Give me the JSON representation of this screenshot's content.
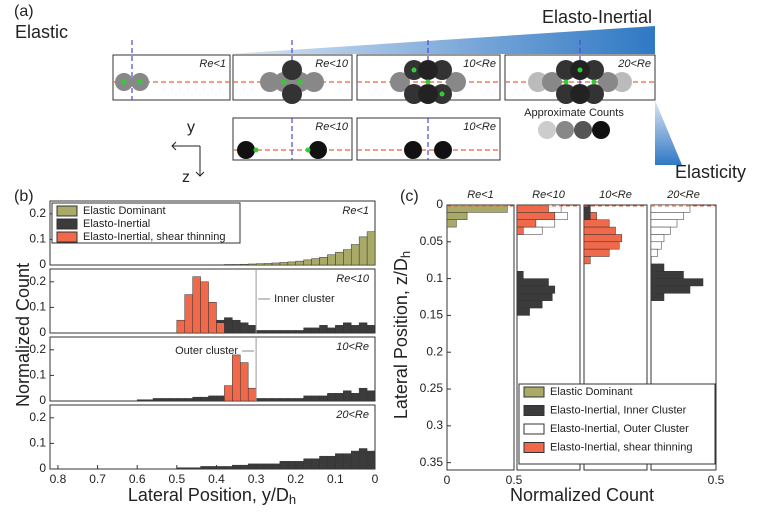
{
  "figure": {
    "panel_labels": [
      "(a)",
      "(b)",
      "(c)"
    ],
    "b_legend": [
      {
        "name": "Elastic Dominant",
        "color": "#a9a968"
      },
      {
        "name": "Elasto-Inertial",
        "color": "#3b3b3b"
      },
      {
        "name": "Elasto-Inertial, shear thinning",
        "color": "#f0694a"
      }
    ],
    "c_legend": [
      {
        "name": "Elastic Dominant",
        "color": "#a9a968"
      },
      {
        "name": "Elasto-Inertial, Inner Cluster",
        "color": "#3b3b3b"
      },
      {
        "name": "Elasto-Inertial, Outer Cluster",
        "color": "#ffffff"
      },
      {
        "name": "Elasto-Inertial, shear thinning",
        "color": "#f0694a"
      }
    ],
    "b_ylabel": "Normalized Count",
    "b_xlabel": "Lateral Position, y/D",
    "b_xlabel_sub": "h",
    "c_ylabel": "Lateral Position, z/D",
    "c_ylabel_sub": "h",
    "c_xlabel": "Normalized Count"
  },
  "diagram": {
    "left_label": "Elastic",
    "right_label": "Elasto-Inertial",
    "elasticity_label": "Elasticity",
    "axis_y": "y",
    "axis_z": "z",
    "top_boxes": [
      "Re<1",
      "Re<10",
      "10<Re",
      "20<Re"
    ],
    "bottom_boxes": [
      "Re<10",
      "10<Re"
    ],
    "counts_label": "Approximate Counts"
  },
  "chart_data": [
    {
      "type": "histogram",
      "orientation": "vertical",
      "annotation": "Re<1",
      "bins": [
        0,
        0.02,
        0.04,
        0.06,
        0.08,
        0.1,
        0.12,
        0.14,
        0.16,
        0.18,
        0.2,
        0.22,
        0.24,
        0.26,
        0.28,
        0.3,
        0.32,
        0.34,
        0.36,
        0.38,
        0.4,
        0.42,
        0.44,
        0.46,
        0.48,
        0.5,
        0.52,
        0.54,
        0.56,
        0.58,
        0.6,
        0.62,
        0.64,
        0.66,
        0.68,
        0.7,
        0.72,
        0.74,
        0.76,
        0.78,
        0.8,
        0.82
      ],
      "series": [
        {
          "name": "Elastic Dominant",
          "color": "#a9a968",
          "values": [
            0.13,
            0.11,
            0.08,
            0.06,
            0.05,
            0.04,
            0.03,
            0.025,
            0.02,
            0.015,
            0.012,
            0.01,
            0.008,
            0.006,
            0.005,
            0.004,
            0.003,
            0.002,
            0.002,
            0.001,
            0.001,
            0,
            0,
            0,
            0,
            0,
            0,
            0,
            0,
            0,
            0,
            0,
            0,
            0,
            0,
            0,
            0,
            0,
            0,
            0,
            0
          ]
        }
      ],
      "xlim": [
        0.82,
        0
      ],
      "ylim": [
        0,
        0.25
      ],
      "yticks": [
        0,
        0.1,
        0.2
      ]
    },
    {
      "type": "histogram",
      "orientation": "vertical",
      "annotation": "Re<10",
      "note": "Inner cluster",
      "reference_x": 0.3,
      "bins": [
        0,
        0.02,
        0.04,
        0.06,
        0.08,
        0.1,
        0.12,
        0.14,
        0.16,
        0.18,
        0.2,
        0.22,
        0.24,
        0.26,
        0.28,
        0.3,
        0.32,
        0.34,
        0.36,
        0.38,
        0.4,
        0.42,
        0.44,
        0.46,
        0.48,
        0.5,
        0.52,
        0.54,
        0.56,
        0.58,
        0.6,
        0.62,
        0.64,
        0.66,
        0.68,
        0.7,
        0.72,
        0.74,
        0.76,
        0.78,
        0.8,
        0.82
      ],
      "series": [
        {
          "name": "Elasto-Inertial",
          "color": "#3b3b3b",
          "values": [
            0.03,
            0.04,
            0.03,
            0.04,
            0.03,
            0.02,
            0.03,
            0.02,
            0.02,
            0.01,
            0.01,
            0.01,
            0.01,
            0.01,
            0.01,
            0.03,
            0.04,
            0.05,
            0.06,
            0.05,
            0.05,
            0.04,
            0.03,
            0.02,
            0.01,
            0,
            0,
            0,
            0,
            0,
            0,
            0,
            0,
            0,
            0,
            0,
            0,
            0,
            0,
            0,
            0
          ]
        },
        {
          "name": "Elasto-Inertial, shear thinning",
          "color": "#f0694a",
          "values": [
            0,
            0,
            0,
            0,
            0,
            0,
            0,
            0,
            0,
            0,
            0,
            0,
            0,
            0,
            0,
            0,
            0,
            0,
            0,
            0.04,
            0.12,
            0.2,
            0.22,
            0.15,
            0.05,
            0,
            0,
            0,
            0,
            0,
            0,
            0,
            0,
            0,
            0,
            0,
            0,
            0,
            0,
            0,
            0
          ]
        }
      ],
      "xlim": [
        0.82,
        0
      ],
      "ylim": [
        0,
        0.25
      ],
      "yticks": [
        0,
        0.1,
        0.2
      ]
    },
    {
      "type": "histogram",
      "orientation": "vertical",
      "annotation": "10<Re",
      "note": "Outer cluster",
      "reference_x": 0.3,
      "bins": [
        0,
        0.02,
        0.04,
        0.06,
        0.08,
        0.1,
        0.12,
        0.14,
        0.16,
        0.18,
        0.2,
        0.22,
        0.24,
        0.26,
        0.28,
        0.3,
        0.32,
        0.34,
        0.36,
        0.38,
        0.4,
        0.42,
        0.44,
        0.46,
        0.48,
        0.5,
        0.52,
        0.54,
        0.56,
        0.58,
        0.6,
        0.62,
        0.64,
        0.66,
        0.68,
        0.7,
        0.72,
        0.74,
        0.76,
        0.78,
        0.8,
        0.82
      ],
      "series": [
        {
          "name": "Elasto-Inertial",
          "color": "#3b3b3b",
          "values": [
            0.04,
            0.05,
            0.03,
            0.04,
            0.03,
            0.03,
            0.02,
            0.02,
            0.02,
            0.01,
            0.01,
            0.01,
            0.01,
            0.01,
            0.01,
            0.02,
            0.02,
            0.02,
            0.02,
            0.02,
            0.02,
            0.015,
            0.015,
            0.01,
            0.01,
            0.01,
            0.01,
            0.01,
            0.005,
            0.005,
            0,
            0,
            0,
            0,
            0,
            0,
            0,
            0,
            0,
            0,
            0
          ]
        },
        {
          "name": "Elasto-Inertial, shear thinning",
          "color": "#f0694a",
          "values": [
            0,
            0,
            0,
            0,
            0,
            0,
            0,
            0,
            0,
            0,
            0,
            0,
            0,
            0,
            0,
            0.05,
            0.15,
            0.18,
            0.06,
            0,
            0,
            0,
            0,
            0,
            0,
            0,
            0,
            0,
            0,
            0,
            0,
            0,
            0,
            0,
            0,
            0,
            0,
            0,
            0,
            0,
            0
          ]
        }
      ],
      "xlim": [
        0.82,
        0
      ],
      "ylim": [
        0,
        0.25
      ],
      "yticks": [
        0,
        0.1,
        0.2
      ]
    },
    {
      "type": "histogram",
      "orientation": "vertical",
      "annotation": "20<Re",
      "bins": [
        0,
        0.02,
        0.04,
        0.06,
        0.08,
        0.1,
        0.12,
        0.14,
        0.16,
        0.18,
        0.2,
        0.22,
        0.24,
        0.26,
        0.28,
        0.3,
        0.32,
        0.34,
        0.36,
        0.38,
        0.4,
        0.42,
        0.44,
        0.46,
        0.48,
        0.5,
        0.52,
        0.54,
        0.56,
        0.58,
        0.6,
        0.62,
        0.64,
        0.66,
        0.68,
        0.7,
        0.72,
        0.74,
        0.76,
        0.78,
        0.8,
        0.82
      ],
      "series": [
        {
          "name": "Elasto-Inertial",
          "color": "#3b3b3b",
          "values": [
            0.07,
            0.08,
            0.07,
            0.06,
            0.06,
            0.05,
            0.05,
            0.04,
            0.04,
            0.03,
            0.03,
            0.03,
            0.02,
            0.02,
            0.02,
            0.02,
            0.015,
            0.015,
            0.01,
            0.01,
            0.01,
            0.01,
            0.005,
            0.005,
            0.005,
            0,
            0,
            0,
            0,
            0,
            0,
            0,
            0,
            0,
            0,
            0,
            0,
            0,
            0,
            0,
            0
          ]
        }
      ],
      "xlim": [
        0.82,
        0
      ],
      "xticks": [
        0.8,
        0.7,
        0.6,
        0.5,
        0.4,
        0.3,
        0.2,
        0.1,
        0
      ],
      "ylim": [
        0,
        0.25
      ],
      "yticks": [
        0,
        0.1,
        0.2
      ]
    },
    {
      "type": "histogram",
      "orientation": "horizontal",
      "title": "Re<1",
      "bins": [
        0,
        0.01,
        0.02,
        0.03,
        0.04,
        0.05,
        0.06,
        0.07,
        0.08,
        0.09,
        0.1,
        0.11,
        0.12,
        0.13,
        0.14,
        0.15,
        0.16,
        0.17,
        0.18,
        0.19,
        0.2,
        0.21,
        0.22,
        0.23,
        0.24,
        0.25,
        0.26,
        0.27,
        0.28,
        0.29,
        0.3,
        0.31,
        0.32,
        0.33,
        0.34,
        0.35,
        0.36
      ],
      "series": [
        {
          "name": "Elastic Dominant",
          "color": "#a9a968",
          "values": [
            0.45,
            0.15,
            0.07,
            0,
            0,
            0,
            0,
            0,
            0,
            0,
            0,
            0,
            0,
            0,
            0,
            0,
            0,
            0,
            0,
            0,
            0,
            0,
            0,
            0,
            0,
            0,
            0,
            0,
            0,
            0,
            0,
            0,
            0,
            0,
            0,
            0
          ]
        }
      ],
      "xlim": [
        0,
        0.5
      ],
      "xticks": [
        0,
        0.5
      ],
      "ylim": [
        0,
        0.36
      ],
      "yticks": [
        0,
        0.05,
        0.1,
        0.15,
        0.2,
        0.25,
        0.3,
        0.35
      ]
    },
    {
      "type": "histogram",
      "orientation": "horizontal",
      "title": "Re<10",
      "bins": [
        0,
        0.01,
        0.02,
        0.03,
        0.04,
        0.05,
        0.06,
        0.07,
        0.08,
        0.09,
        0.1,
        0.11,
        0.12,
        0.13,
        0.14,
        0.15,
        0.16,
        0.17,
        0.18,
        0.19,
        0.2,
        0.21,
        0.22,
        0.23,
        0.24,
        0.25,
        0.26,
        0.27,
        0.28,
        0.29,
        0.3,
        0.31,
        0.32,
        0.33,
        0.34,
        0.35,
        0.36
      ],
      "series": [
        {
          "name": "Elasto-Inertial, Outer Cluster",
          "color": "#ffffff",
          "values": [
            0.35,
            0.4,
            0.3,
            0.2,
            0,
            0,
            0,
            0,
            0,
            0,
            0,
            0,
            0,
            0,
            0,
            0,
            0,
            0,
            0,
            0,
            0,
            0,
            0,
            0,
            0,
            0,
            0,
            0,
            0,
            0,
            0,
            0,
            0,
            0,
            0,
            0
          ]
        },
        {
          "name": "Elasto-Inertial, shear thinning",
          "color": "#f0694a",
          "values": [
            0.25,
            0.3,
            0.15,
            0.05,
            0,
            0,
            0,
            0,
            0,
            0,
            0,
            0,
            0,
            0,
            0,
            0,
            0,
            0,
            0,
            0,
            0,
            0,
            0,
            0,
            0,
            0,
            0,
            0,
            0,
            0,
            0,
            0,
            0,
            0,
            0,
            0
          ]
        },
        {
          "name": "Elasto-Inertial, Inner Cluster",
          "color": "#3b3b3b",
          "values": [
            0,
            0,
            0,
            0,
            0,
            0,
            0,
            0,
            0,
            0.05,
            0.25,
            0.3,
            0.28,
            0.2,
            0.1,
            0,
            0,
            0,
            0,
            0,
            0,
            0,
            0,
            0,
            0,
            0,
            0,
            0,
            0,
            0,
            0,
            0,
            0,
            0,
            0,
            0
          ]
        }
      ],
      "xlim": [
        0,
        0.5
      ],
      "ylim": [
        0,
        0.36
      ]
    },
    {
      "type": "histogram",
      "orientation": "horizontal",
      "title": "10<Re",
      "bins": [
        0,
        0.01,
        0.02,
        0.03,
        0.04,
        0.05,
        0.06,
        0.07,
        0.08,
        0.09,
        0.1,
        0.11,
        0.12,
        0.13,
        0.14,
        0.15,
        0.16,
        0.17,
        0.18,
        0.19,
        0.2,
        0.21,
        0.22,
        0.23,
        0.24,
        0.25,
        0.26,
        0.27,
        0.28,
        0.29,
        0.3,
        0.31,
        0.32,
        0.33,
        0.34,
        0.35,
        0.36
      ],
      "series": [
        {
          "name": "Elasto-Inertial, shear thinning",
          "color": "#f0694a",
          "values": [
            0.05,
            0.1,
            0.2,
            0.25,
            0.3,
            0.28,
            0.2,
            0.05,
            0,
            0,
            0,
            0,
            0,
            0,
            0,
            0,
            0,
            0,
            0,
            0,
            0,
            0,
            0,
            0,
            0,
            0,
            0,
            0,
            0,
            0,
            0,
            0,
            0,
            0,
            0,
            0
          ]
        },
        {
          "name": "Elasto-Inertial, Inner Cluster",
          "color": "#3b3b3b",
          "values": [
            0.05,
            0.05,
            0,
            0,
            0,
            0,
            0,
            0,
            0,
            0,
            0,
            0,
            0,
            0,
            0,
            0,
            0,
            0,
            0,
            0,
            0,
            0,
            0,
            0,
            0,
            0,
            0,
            0,
            0,
            0,
            0,
            0,
            0,
            0,
            0,
            0
          ]
        }
      ],
      "xlim": [
        0,
        0.5
      ],
      "ylim": [
        0,
        0.36
      ]
    },
    {
      "type": "histogram",
      "orientation": "horizontal",
      "title": "20<Re",
      "bins": [
        0,
        0.01,
        0.02,
        0.03,
        0.04,
        0.05,
        0.06,
        0.07,
        0.08,
        0.09,
        0.1,
        0.11,
        0.12,
        0.13,
        0.14,
        0.15,
        0.16,
        0.17,
        0.18,
        0.19,
        0.2,
        0.21,
        0.22,
        0.23,
        0.24,
        0.25,
        0.26,
        0.27,
        0.28,
        0.29,
        0.3,
        0.31,
        0.32,
        0.33,
        0.34,
        0.35,
        0.36
      ],
      "series": [
        {
          "name": "Elasto-Inertial, Outer Cluster",
          "color": "#ffffff",
          "values": [
            0.3,
            0.25,
            0.2,
            0.15,
            0.1,
            0.08,
            0.05,
            0,
            0,
            0,
            0,
            0,
            0,
            0,
            0,
            0,
            0,
            0,
            0,
            0,
            0,
            0,
            0,
            0,
            0,
            0,
            0,
            0,
            0,
            0,
            0,
            0,
            0,
            0,
            0,
            0
          ]
        },
        {
          "name": "Elasto-Inertial, Inner Cluster",
          "color": "#3b3b3b",
          "values": [
            0,
            0,
            0,
            0,
            0,
            0,
            0,
            0,
            0.1,
            0.25,
            0.4,
            0.3,
            0.1,
            0,
            0,
            0,
            0,
            0,
            0,
            0,
            0,
            0,
            0,
            0,
            0,
            0,
            0,
            0,
            0,
            0,
            0,
            0,
            0,
            0,
            0,
            0
          ]
        }
      ],
      "xlim": [
        0,
        0.5
      ],
      "xticks": [
        0.5
      ],
      "ylim": [
        0,
        0.36
      ]
    }
  ]
}
